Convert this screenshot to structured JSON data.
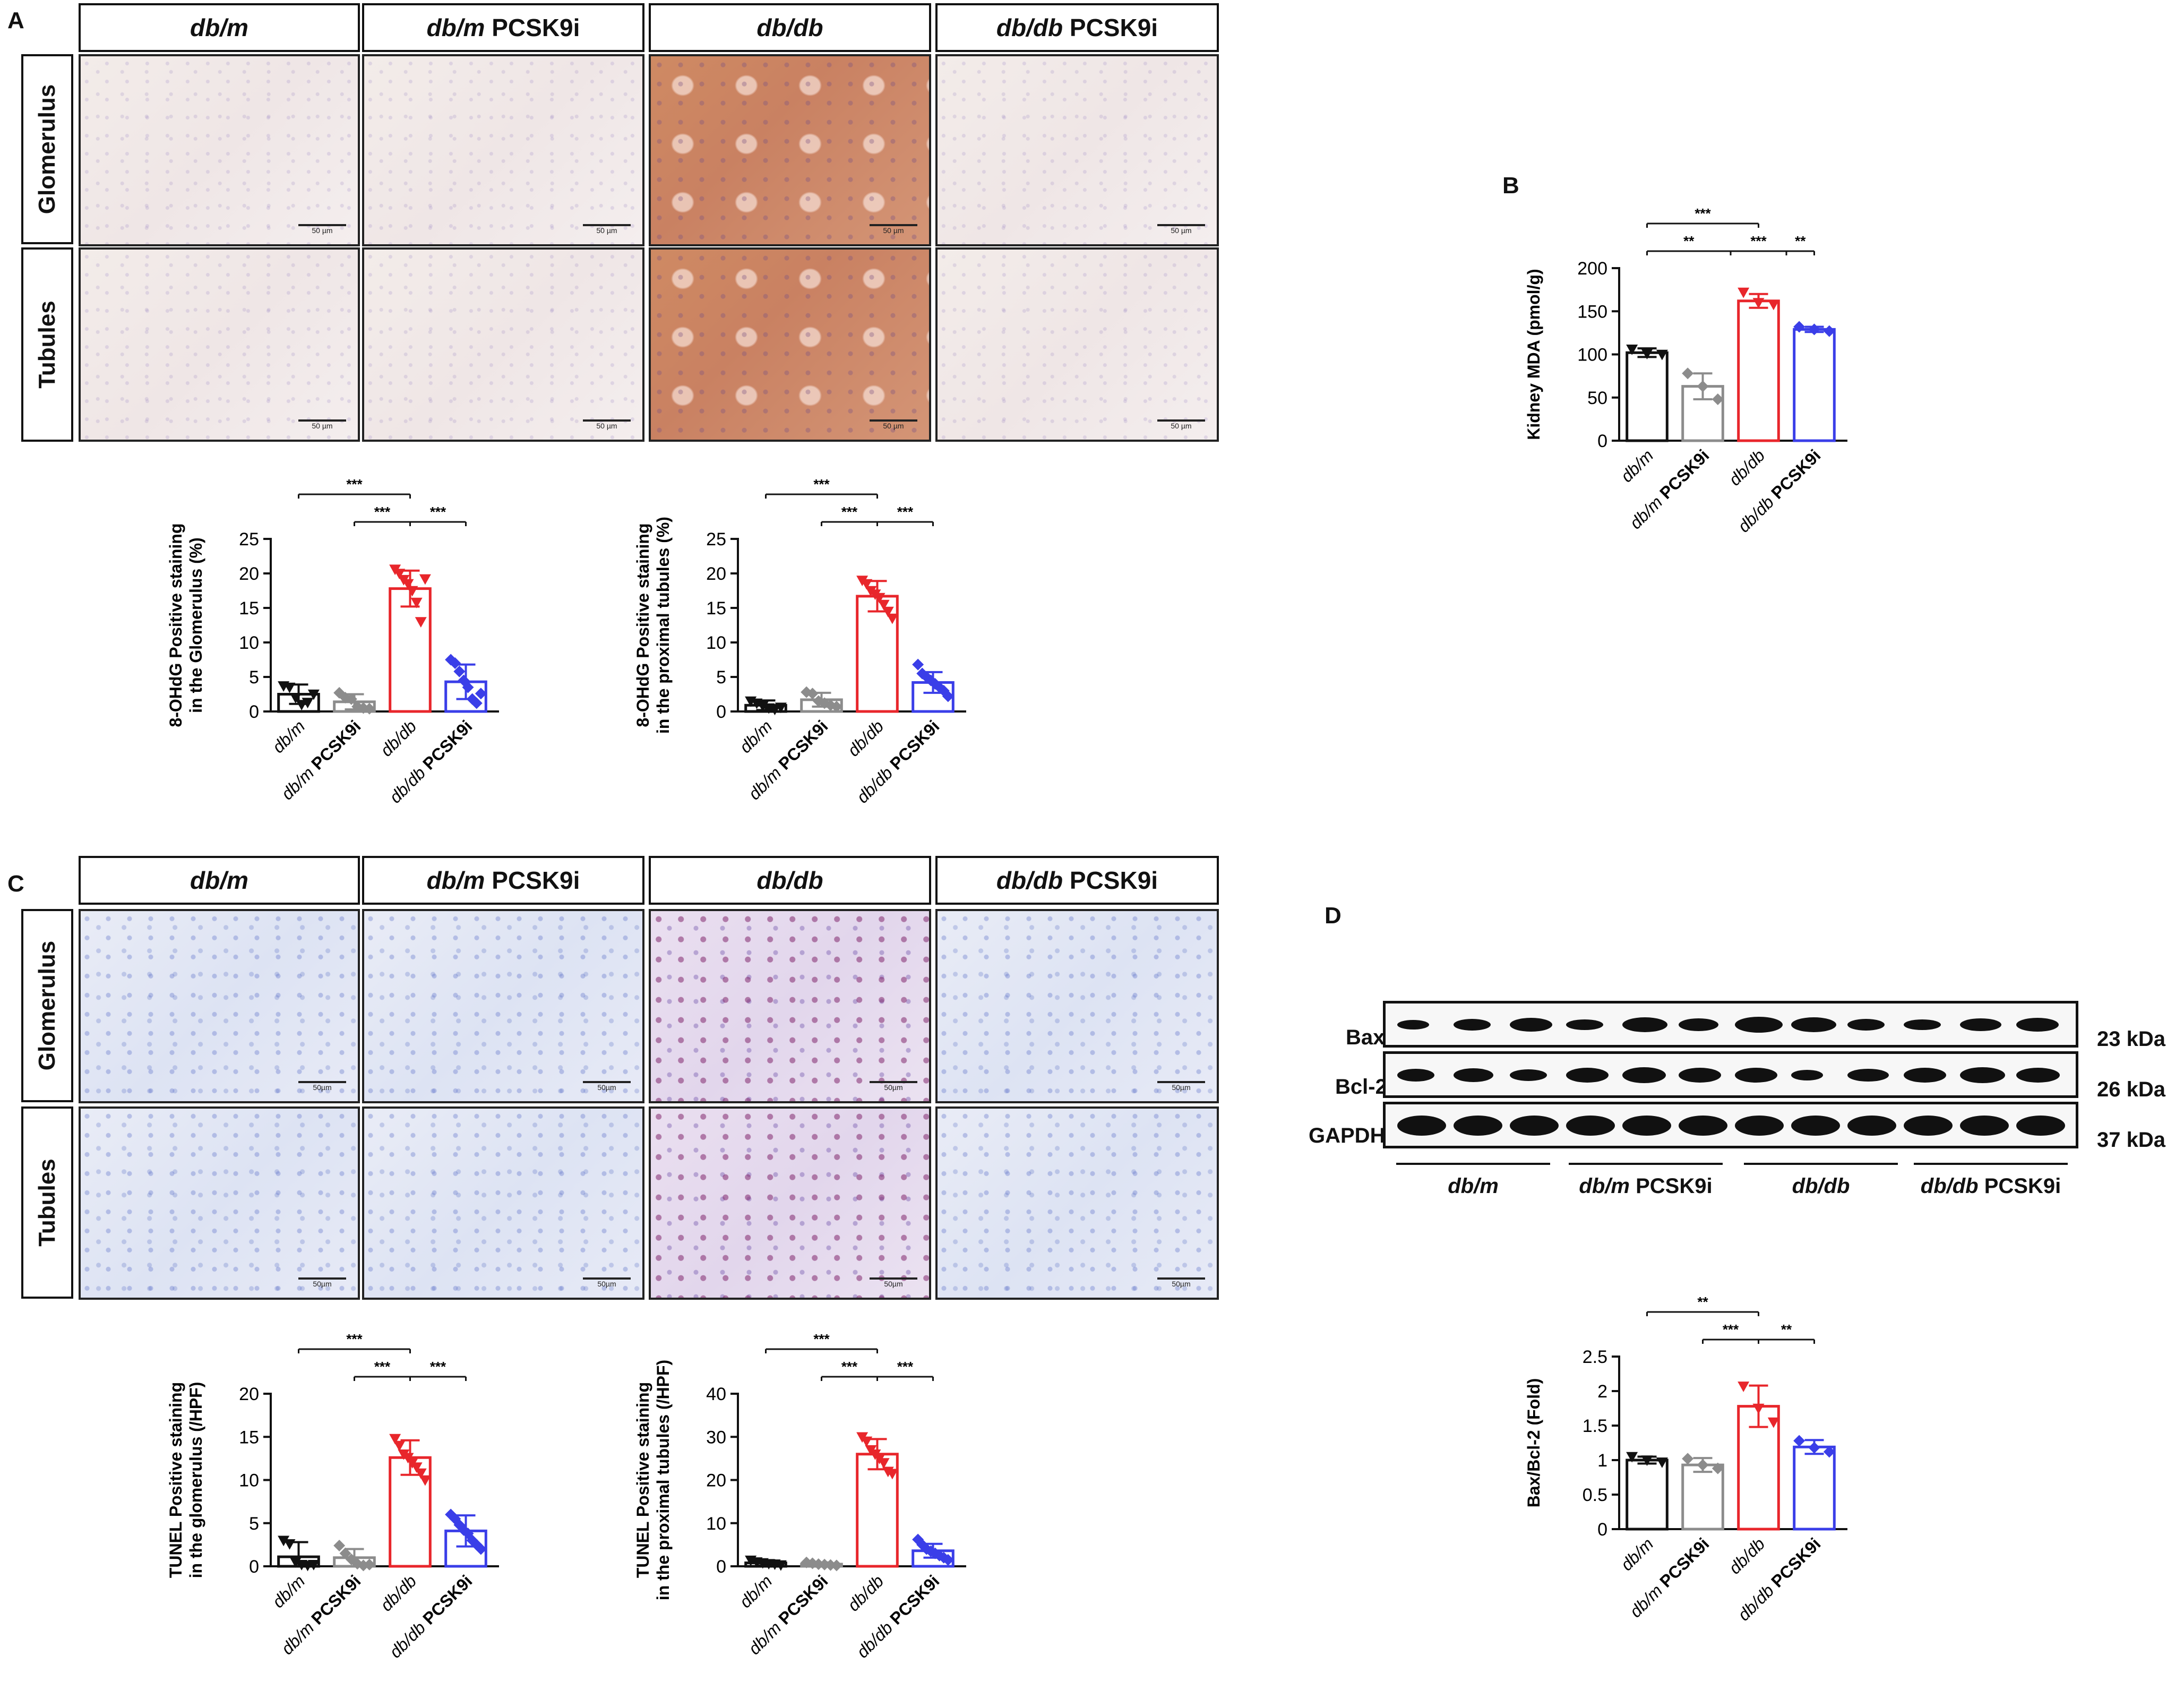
{
  "panels": {
    "a": "A",
    "b": "B",
    "c": "C",
    "d": "D"
  },
  "groups": {
    "g1": {
      "italic": "db/m",
      "rest": ""
    },
    "g2": {
      "italic": "db/m",
      "rest": " PCSK9i"
    },
    "g3": {
      "italic": "db/db",
      "rest": ""
    },
    "g4": {
      "italic": "db/db",
      "rest": " PCSK9i"
    }
  },
  "rows": {
    "glomerulus": "Glomerulus",
    "tubules": "Tubules"
  },
  "scalebars": {
    "a": "50 µm",
    "c": "50µm"
  },
  "colors": {
    "db_m": "#111111",
    "db_m_pcsk9i": "#8c8c8c",
    "db_db": "#e8262b",
    "db_db_pcsk9i": "#3a3ee8"
  },
  "western": {
    "rows": [
      {
        "label": "Bax",
        "kda": "23 kDa"
      },
      {
        "label": "Bcl-2",
        "kda": "26 kDa"
      },
      {
        "label": "GAPDH",
        "kda": "37 kDa"
      }
    ],
    "group_labels": [
      {
        "italic": "db/m",
        "rest": ""
      },
      {
        "italic": "db/m",
        "rest": " PCSK9i"
      },
      {
        "italic": "db/db",
        "rest": ""
      },
      {
        "italic": "db/db",
        "rest": " PCSK9i"
      }
    ]
  },
  "chart_data": [
    {
      "id": "a-glomerulus",
      "type": "bar",
      "categories": [
        "db/m",
        "db/m PCSK9i",
        "db/db",
        "db/db PCSK9i"
      ],
      "values": [
        2.5,
        1.4,
        17.8,
        4.3
      ],
      "errors": [
        1.4,
        1.1,
        2.6,
        2.5
      ],
      "points": [
        [
          3.7,
          3.5,
          2.0,
          1.0,
          1.3,
          2.5
        ],
        [
          2.7,
          2.0,
          1.8,
          0.7,
          0.5,
          0.4
        ],
        [
          20.6,
          20.0,
          19.1,
          18.5,
          17.5,
          15.8,
          13.0,
          19.2
        ],
        [
          7.5,
          7.0,
          5.8,
          4.5,
          3.5,
          1.8,
          1.2,
          2.6
        ]
      ],
      "ylabel": "8-OHdG Positive staining\nin the Glomerulus (%)",
      "ylim": [
        0,
        25
      ],
      "yticks": [
        0,
        5,
        10,
        15,
        20,
        25
      ],
      "sig": [
        {
          "from": 0,
          "to": 2,
          "label": "***",
          "level": 2
        },
        {
          "from": 1,
          "to": 2,
          "label": "***",
          "level": 1
        },
        {
          "from": 2,
          "to": 3,
          "label": "***",
          "level": 1
        }
      ]
    },
    {
      "id": "a-tubules",
      "type": "bar",
      "categories": [
        "db/m",
        "db/m PCSK9i",
        "db/db",
        "db/db PCSK9i"
      ],
      "values": [
        0.9,
        1.7,
        16.7,
        4.2
      ],
      "errors": [
        0.7,
        1.0,
        2.2,
        1.5
      ],
      "points": [
        [
          1.5,
          1.2,
          0.8,
          0.5,
          0.3,
          0.6
        ],
        [
          2.8,
          2.6,
          1.5,
          1.2,
          0.9,
          0.7
        ],
        [
          19.0,
          18.5,
          17.5,
          17.0,
          16.5,
          15.5,
          14.5,
          13.5
        ],
        [
          6.8,
          5.5,
          5.0,
          4.5,
          4.0,
          3.5,
          3.0,
          2.2
        ]
      ],
      "ylabel": "8-OHdG Positive staining\nin the proximal tubules (%)",
      "ylim": [
        0,
        25
      ],
      "yticks": [
        0,
        5,
        10,
        15,
        20,
        25
      ],
      "sig": [
        {
          "from": 0,
          "to": 2,
          "label": "***",
          "level": 2
        },
        {
          "from": 1,
          "to": 2,
          "label": "***",
          "level": 1
        },
        {
          "from": 2,
          "to": 3,
          "label": "***",
          "level": 1
        }
      ]
    },
    {
      "id": "b-mda",
      "type": "bar",
      "categories": [
        "db/m",
        "db/m PCSK9i",
        "db/db",
        "db/db PCSK9i"
      ],
      "values": [
        102,
        63,
        162,
        129
      ],
      "errors": [
        5,
        15,
        8,
        3
      ],
      "points": [
        [
          106,
          101,
          100
        ],
        [
          78,
          63,
          48
        ],
        [
          172,
          160,
          158
        ],
        [
          132,
          129,
          127
        ]
      ],
      "ylabel": "Kidney MDA (pmol/g)",
      "ylim": [
        0,
        200
      ],
      "yticks": [
        0,
        50,
        100,
        150,
        200
      ],
      "sig": [
        {
          "from": 0,
          "to": 2,
          "label": "***",
          "level": 2
        },
        {
          "from": 0,
          "to": 1.5,
          "label": "**",
          "level": 1
        },
        {
          "from": 1.5,
          "to": 2.5,
          "label": "***",
          "level": 1
        },
        {
          "from": 2.5,
          "to": 3,
          "label": "**",
          "level": 1
        }
      ]
    },
    {
      "id": "c-glomerulus",
      "type": "bar",
      "categories": [
        "db/m",
        "db/m PCSK9i",
        "db/db",
        "db/db PCSK9i"
      ],
      "values": [
        1.1,
        1.0,
        12.6,
        4.1
      ],
      "errors": [
        1.7,
        1.0,
        2.0,
        1.8
      ],
      "points": [
        [
          3.0,
          2.6,
          0.5,
          0.2,
          0.1,
          0.2
        ],
        [
          2.4,
          1.5,
          0.8,
          0.3,
          0.1,
          0.2
        ],
        [
          14.8,
          14.0,
          13.0,
          12.6,
          12.0,
          11.5,
          10.8,
          10.0
        ],
        [
          6.0,
          5.5,
          4.8,
          4.2,
          3.8,
          3.0,
          2.5,
          2.0
        ]
      ],
      "ylabel": "TUNEL Positive staining\nin the glomerulus (/HPF)",
      "ylim": [
        0,
        20
      ],
      "yticks": [
        0,
        5,
        10,
        15,
        20
      ],
      "sig": [
        {
          "from": 0,
          "to": 2,
          "label": "***",
          "level": 2
        },
        {
          "from": 1,
          "to": 2,
          "label": "***",
          "level": 1
        },
        {
          "from": 2,
          "to": 3,
          "label": "***",
          "level": 1
        }
      ]
    },
    {
      "id": "c-tubules",
      "type": "bar",
      "categories": [
        "db/m",
        "db/m PCSK9i",
        "db/db",
        "db/db PCSK9i"
      ],
      "values": [
        0.8,
        0.5,
        26.0,
        3.6
      ],
      "errors": [
        0.6,
        0.4,
        3.5,
        1.6
      ],
      "points": [
        [
          1.4,
          1.0,
          0.8,
          0.6,
          0.5,
          0.3
        ],
        [
          0.9,
          0.7,
          0.5,
          0.4,
          0.3,
          0.2
        ],
        [
          30.0,
          29.0,
          27.0,
          26.0,
          25.0,
          24.0,
          22.0,
          21.5
        ],
        [
          6.2,
          5.0,
          4.0,
          3.5,
          3.0,
          2.5,
          2.0,
          1.5
        ]
      ],
      "ylabel": "TUNEL Positive staining\nin the proximal tubules (/HPF)",
      "ylim": [
        0,
        40
      ],
      "yticks": [
        0,
        10,
        20,
        30,
        40
      ],
      "sig": [
        {
          "from": 0,
          "to": 2,
          "label": "***",
          "level": 2
        },
        {
          "from": 1,
          "to": 2,
          "label": "***",
          "level": 1
        },
        {
          "from": 2,
          "to": 3,
          "label": "***",
          "level": 1
        }
      ]
    },
    {
      "id": "d-ratio",
      "type": "bar",
      "categories": [
        "db/m",
        "db/m PCSK9i",
        "db/db",
        "db/db PCSK9i"
      ],
      "values": [
        1.0,
        0.93,
        1.78,
        1.19
      ],
      "errors": [
        0.05,
        0.1,
        0.3,
        0.1
      ],
      "points": [
        [
          1.05,
          1.0,
          0.97
        ],
        [
          1.02,
          0.93,
          0.88
        ],
        [
          2.07,
          1.75,
          1.55
        ],
        [
          1.28,
          1.18,
          1.12
        ]
      ],
      "ylabel": "Bax/Bcl-2 (Fold)",
      "ylim": [
        0,
        2.5
      ],
      "yticks": [
        0.0,
        0.5,
        1.0,
        1.5,
        2.0,
        2.5
      ],
      "sig": [
        {
          "from": 0,
          "to": 2,
          "label": "**",
          "level": 2
        },
        {
          "from": 1,
          "to": 2,
          "label": "***",
          "level": 1
        },
        {
          "from": 2,
          "to": 3,
          "label": "**",
          "level": 1
        }
      ]
    }
  ]
}
